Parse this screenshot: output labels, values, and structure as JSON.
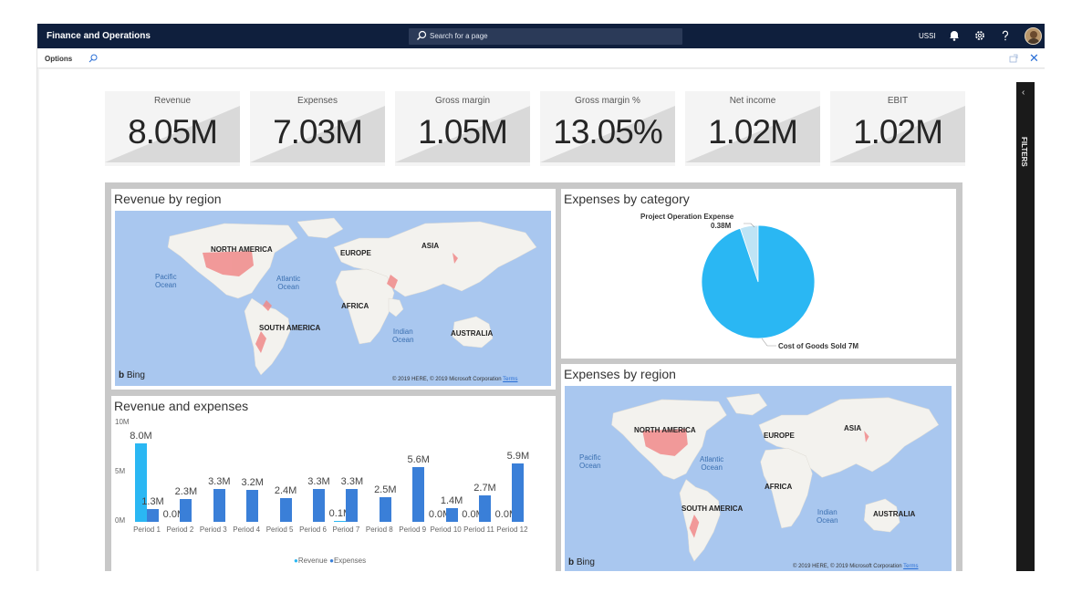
{
  "app": {
    "title": "Finance and Operations",
    "company": "USSI"
  },
  "search": {
    "placeholder": "Search for a page"
  },
  "optionsbar": {
    "label": "Options"
  },
  "kpis": [
    {
      "label": "Revenue",
      "value": "8.05M"
    },
    {
      "label": "Expenses",
      "value": "7.03M"
    },
    {
      "label": "Gross margin",
      "value": "1.05M"
    },
    {
      "label": "Gross margin %",
      "value": "13.05%"
    },
    {
      "label": "Net income",
      "value": "1.02M"
    },
    {
      "label": "EBIT",
      "value": "1.02M"
    }
  ],
  "tiles": {
    "revenue_by_region": "Revenue by region",
    "expenses_by_category": "Expenses by category",
    "revenue_and_expenses": "Revenue and expenses",
    "expenses_by_region": "Expenses by region"
  },
  "map_labels": {
    "north_america": "NORTH AMERICA",
    "europe": "EUROPE",
    "asia": "ASIA",
    "africa": "AFRICA",
    "south_america": "SOUTH AMERICA",
    "australia": "AUSTRALIA",
    "pacific_ocean_1": "Pacific",
    "pacific_ocean_2": "Ocean",
    "atlantic_ocean_1": "Atlantic",
    "atlantic_ocean_2": "Ocean",
    "indian_ocean_1": "Indian",
    "indian_ocean_2": "Ocean",
    "bing": "Bing",
    "copyright": "© 2019 HERE, © 2019 Microsoft Corporation",
    "terms": "Terms"
  },
  "pie": {
    "slices": [
      {
        "label": "Project Operation Expense",
        "value": 0.38,
        "value_label": "0.38M",
        "color": "#bfe4f5"
      },
      {
        "label": "Cost of Goods Sold",
        "value": 7,
        "value_label": "Cost of Goods Sold 7M",
        "color": "#2ab7f3"
      }
    ]
  },
  "chart_data": {
    "type": "bar",
    "categories": [
      "Period 1",
      "Period 2",
      "Period 3",
      "Period 4",
      "Period 5",
      "Period 6",
      "Period 7",
      "Period 8",
      "Period 9",
      "Period 10",
      "Period 11",
      "Period 12"
    ],
    "series": [
      {
        "name": "Revenue",
        "color": "#2ab7f3",
        "values": [
          8.0,
          0.0,
          null,
          null,
          null,
          null,
          0.1,
          null,
          null,
          0.0,
          0.0,
          0.0
        ],
        "labels": [
          "8.0M",
          "0.0M",
          "",
          "",
          "",
          "",
          "0.1M",
          "",
          "",
          "0.0M",
          "0.0M",
          "0.0M"
        ]
      },
      {
        "name": "Expenses",
        "color": "#3a7fd8",
        "values": [
          1.3,
          2.3,
          3.3,
          3.2,
          2.4,
          3.3,
          3.3,
          2.5,
          5.6,
          1.4,
          2.7,
          5.9
        ],
        "labels": [
          "1.3M",
          "2.3M",
          "3.3M",
          "3.2M",
          "2.4M",
          "3.3M",
          "3.3M",
          "2.5M",
          "5.6M",
          "1.4M",
          "2.7M",
          "5.9M"
        ]
      }
    ],
    "yticks": [
      "10M",
      "5M",
      "0M"
    ],
    "ylim": [
      0,
      10
    ],
    "legend": "bottom"
  },
  "filters": {
    "label": "FILTERS"
  }
}
